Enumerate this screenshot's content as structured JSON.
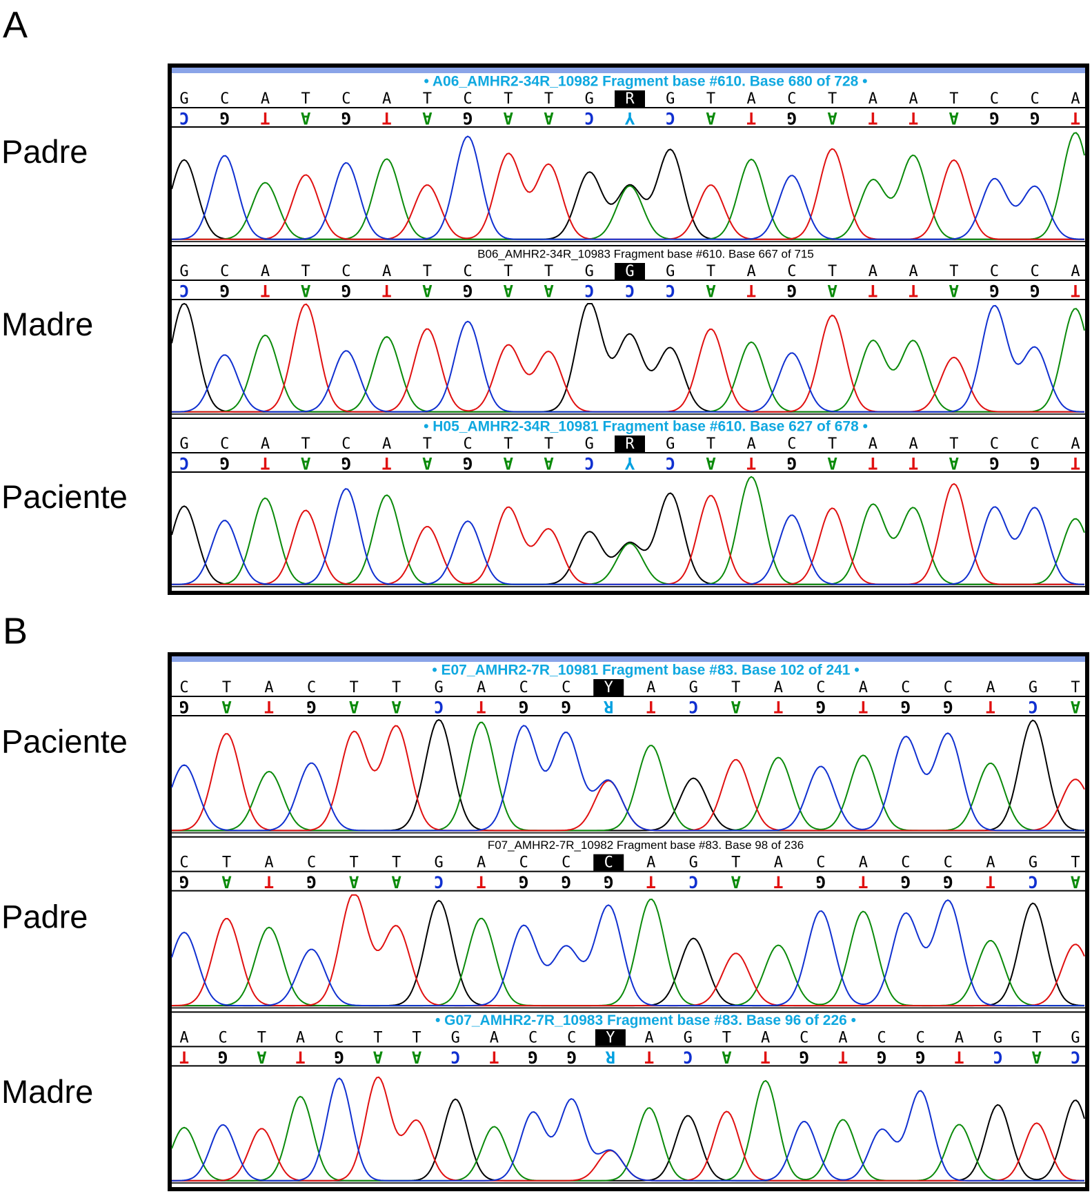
{
  "panels": [
    {
      "label": "A",
      "tracks": [
        {
          "row_label": "Padre",
          "header": "• A06_AMHR2-34R_10982 Fragment base #610. Base 680 of 728 •",
          "header_style": "cyan",
          "bases": [
            "G",
            "C",
            "A",
            "T",
            "C",
            "A",
            "T",
            "C",
            "T",
            "T",
            "G",
            "R",
            "G",
            "T",
            "A",
            "C",
            "T",
            "A",
            "A",
            "T",
            "C",
            "C",
            "A"
          ],
          "complement": [
            "C",
            "G",
            "T",
            "A",
            "G",
            "T",
            "A",
            "G",
            "A",
            "A",
            "C",
            "Y",
            "C",
            "A",
            "T",
            "G",
            "A",
            "T",
            "T",
            "A",
            "G",
            "G",
            "T"
          ],
          "selected_base": 11
        },
        {
          "row_label": "Madre",
          "header": "B06_AMHR2-34R_10983 Fragment base #610. Base 667 of 715",
          "header_style": "plain",
          "bases": [
            "G",
            "C",
            "A",
            "T",
            "C",
            "A",
            "T",
            "C",
            "T",
            "T",
            "G",
            "G",
            "G",
            "T",
            "A",
            "C",
            "T",
            "A",
            "A",
            "T",
            "C",
            "C",
            "A"
          ],
          "complement": [
            "C",
            "G",
            "T",
            "A",
            "G",
            "T",
            "A",
            "G",
            "A",
            "A",
            "C",
            "C",
            "C",
            "A",
            "T",
            "G",
            "A",
            "T",
            "T",
            "A",
            "G",
            "G",
            "T"
          ],
          "selected_base": 11
        },
        {
          "row_label": "Paciente",
          "header": "• H05_AMHR2-34R_10981 Fragment base #610. Base 627 of 678 •",
          "header_style": "cyan",
          "bases": [
            "G",
            "C",
            "A",
            "T",
            "C",
            "A",
            "T",
            "C",
            "T",
            "T",
            "G",
            "R",
            "G",
            "T",
            "A",
            "C",
            "T",
            "A",
            "A",
            "T",
            "C",
            "C",
            "A"
          ],
          "complement": [
            "C",
            "G",
            "T",
            "A",
            "G",
            "T",
            "A",
            "G",
            "A",
            "A",
            "C",
            "Y",
            "C",
            "A",
            "T",
            "G",
            "A",
            "T",
            "T",
            "A",
            "G",
            "G",
            "T"
          ],
          "selected_base": 11
        }
      ]
    },
    {
      "label": "B",
      "tracks": [
        {
          "row_label": "Paciente",
          "header": "• E07_AMHR2-7R_10981 Fragment base #83. Base 102 of 241 •",
          "header_style": "cyan",
          "bases": [
            "C",
            "T",
            "A",
            "C",
            "T",
            "T",
            "G",
            "A",
            "C",
            "C",
            "Y",
            "A",
            "G",
            "T",
            "A",
            "C",
            "A",
            "C",
            "C",
            "A",
            "G",
            "T"
          ],
          "complement": [
            "G",
            "A",
            "T",
            "G",
            "A",
            "A",
            "C",
            "T",
            "G",
            "G",
            "R",
            "T",
            "C",
            "A",
            "T",
            "G",
            "T",
            "G",
            "G",
            "T",
            "C",
            "A"
          ],
          "selected_base": 10
        },
        {
          "row_label": "Padre",
          "header": "F07_AMHR2-7R_10982 Fragment base #83. Base 98 of 236",
          "header_style": "plain",
          "bases": [
            "C",
            "T",
            "A",
            "C",
            "T",
            "T",
            "G",
            "A",
            "C",
            "C",
            "C",
            "A",
            "G",
            "T",
            "A",
            "C",
            "A",
            "C",
            "C",
            "A",
            "G",
            "T"
          ],
          "complement": [
            "G",
            "A",
            "T",
            "G",
            "A",
            "A",
            "C",
            "T",
            "G",
            "G",
            "G",
            "T",
            "C",
            "A",
            "T",
            "G",
            "T",
            "G",
            "G",
            "T",
            "C",
            "A"
          ],
          "selected_base": 10
        },
        {
          "row_label": "Madre",
          "header": "• G07_AMHR2-7R_10983 Fragment base #83. Base 96 of 226 •",
          "header_style": "cyan",
          "bases": [
            "A",
            "C",
            "T",
            "A",
            "C",
            "T",
            "T",
            "G",
            "A",
            "C",
            "C",
            "Y",
            "A",
            "G",
            "T",
            "A",
            "C",
            "A",
            "C",
            "C",
            "A",
            "G",
            "T",
            "G"
          ],
          "complement": [
            "T",
            "G",
            "A",
            "T",
            "G",
            "A",
            "A",
            "C",
            "T",
            "G",
            "G",
            "R",
            "T",
            "C",
            "A",
            "T",
            "G",
            "T",
            "G",
            "G",
            "T",
            "C",
            "A",
            "C"
          ],
          "selected_base": 11
        }
      ]
    }
  ]
}
